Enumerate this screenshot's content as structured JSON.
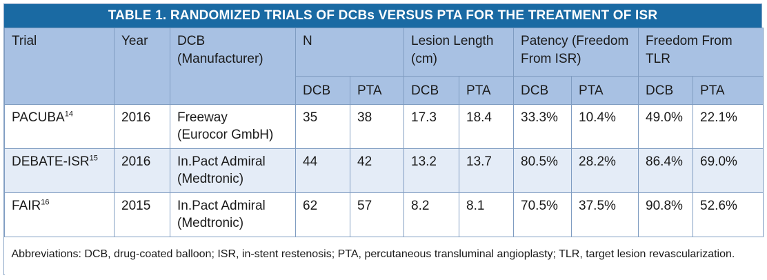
{
  "title": "TABLE 1.  RANDOMIZED TRIALS OF DCBs VERSUS PTA FOR THE TREATMENT OF ISR",
  "headers": {
    "trial": "Trial",
    "year": "Year",
    "dcb_line1": "DCB",
    "dcb_line2": "(Manufacturer)",
    "n": "N",
    "lesion_line1": "Lesion Length",
    "lesion_line2": "(cm)",
    "patency_line1": "Patency (Freedom",
    "patency_line2": "From ISR)",
    "tlr": "Freedom From TLR",
    "sub_dcb": "DCB",
    "sub_pta": "PTA"
  },
  "rows": [
    {
      "trial": "PACUBA",
      "ref": "14",
      "year": "2016",
      "dcb": "Freeway",
      "manufacturer": "(Eurocor GmbH)",
      "n_dcb": "35",
      "n_pta": "38",
      "lesion_dcb": "17.3",
      "lesion_pta": "18.4",
      "patency_dcb": "33.3%",
      "patency_pta": "10.4%",
      "tlr_dcb": "49.0%",
      "tlr_pta": "22.1%"
    },
    {
      "trial": "DEBATE-ISR",
      "ref": "15",
      "year": "2016",
      "dcb": "In.Pact Admiral",
      "manufacturer": "(Medtronic)",
      "n_dcb": "44",
      "n_pta": "42",
      "lesion_dcb": "13.2",
      "lesion_pta": "13.7",
      "patency_dcb": "80.5%",
      "patency_pta": "28.2%",
      "tlr_dcb": "86.4%",
      "tlr_pta": "69.0%"
    },
    {
      "trial": "FAIR",
      "ref": "16",
      "year": "2015",
      "dcb": "In.Pact Admiral",
      "manufacturer": "(Medtronic)",
      "n_dcb": "62",
      "n_pta": "57",
      "lesion_dcb": "8.2",
      "lesion_pta": "8.1",
      "patency_dcb": "70.5%",
      "patency_pta": "37.5%",
      "tlr_dcb": "90.8%",
      "tlr_pta": "52.6%"
    }
  ],
  "footnote": "Abbreviations: DCB, drug-coated balloon; ISR, in-stent restenosis; PTA, percutaneous transluminal angioplasty; TLR, target lesion revascularization.",
  "colors": {
    "title_bar": "#1a6aa3",
    "header_bg": "#a8c1e3",
    "alt_row_bg": "#e4ecf7",
    "border": "#7f9cc1"
  }
}
